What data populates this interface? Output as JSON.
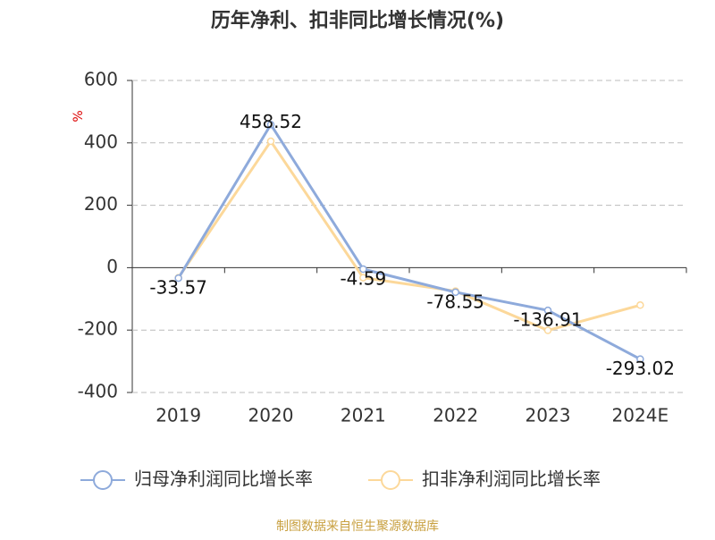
{
  "chart_data": {
    "type": "line",
    "title": "历年净利、扣非同比增长情况(%)",
    "y_label": "%",
    "categories": [
      "2019",
      "2020",
      "2021",
      "2022",
      "2023",
      "2024E"
    ],
    "series": [
      {
        "name": "归母净利润同比增长率",
        "color": "#8eaadb",
        "values": [
          -33.57,
          458.52,
          -4.59,
          -78.55,
          -136.91,
          -293.02
        ]
      },
      {
        "name": "扣非净利润同比增长率",
        "color": "#fcd89a",
        "values": [
          -32,
          405,
          -32,
          -75,
          -201,
          -120
        ]
      }
    ],
    "ylim": [
      -400,
      600
    ],
    "yticks": [
      -400,
      -200,
      0,
      200,
      400,
      600
    ],
    "grid": true,
    "source": "制图数据来自恒生聚源数据库"
  }
}
